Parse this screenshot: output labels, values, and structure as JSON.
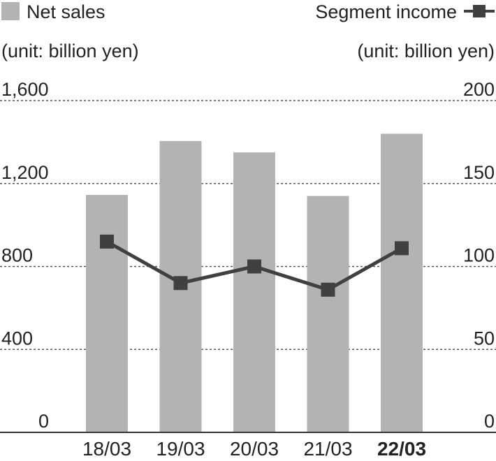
{
  "chart_data": {
    "type": "bar",
    "categories": [
      "18/03",
      "19/03",
      "20/03",
      "21/03",
      "22/03"
    ],
    "highlight_category": "22/03",
    "series": [
      {
        "name": "Net sales",
        "type": "bar",
        "axis": "left",
        "values": [
          1145,
          1405,
          1350,
          1140,
          1440
        ],
        "color": "#b3b3b3"
      },
      {
        "name": "Segment income",
        "type": "line",
        "axis": "right",
        "values": [
          115,
          90,
          100,
          86,
          111
        ],
        "color": "#404040"
      }
    ],
    "left_axis": {
      "unit_label": "(unit: billion yen)",
      "ylim": [
        0,
        1600
      ],
      "ticks": [
        0,
        400,
        800,
        1200,
        1600
      ],
      "tick_labels": [
        "0",
        "400",
        "800",
        "1,200",
        "1,600"
      ]
    },
    "right_axis": {
      "unit_label": "(unit: billion yen)",
      "ylim": [
        0,
        200
      ],
      "ticks": [
        0,
        50,
        100,
        150,
        200
      ],
      "tick_labels": [
        "0",
        "50",
        "100",
        "150",
        "200"
      ]
    },
    "grid": "horizontal-dotted",
    "legend_placement": "top"
  }
}
